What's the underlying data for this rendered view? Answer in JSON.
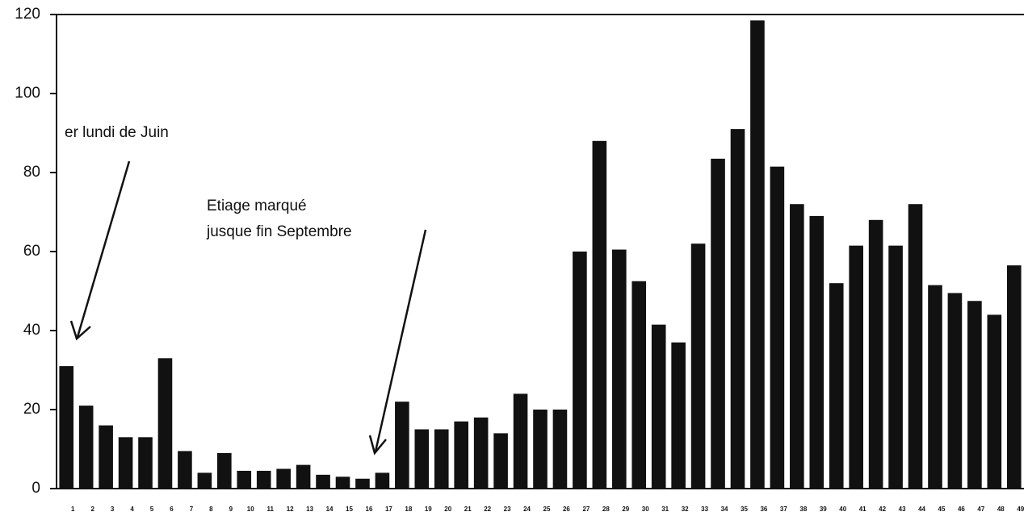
{
  "chart_data": {
    "type": "bar",
    "categories": [
      "1",
      "2",
      "3",
      "4",
      "5",
      "6",
      "7",
      "8",
      "9",
      "10",
      "11",
      "12",
      "13",
      "14",
      "15",
      "16",
      "17",
      "18",
      "19",
      "20",
      "21",
      "22",
      "23",
      "24",
      "25",
      "26",
      "27",
      "28",
      "29",
      "30",
      "31",
      "32",
      "33",
      "34",
      "35",
      "36",
      "37",
      "38",
      "39",
      "40",
      "41",
      "42",
      "43",
      "44",
      "45",
      "46",
      "47",
      "48",
      "49"
    ],
    "values": [
      31,
      21,
      16,
      13,
      13,
      33,
      9.5,
      4,
      9,
      4.5,
      4.5,
      5,
      6,
      3.5,
      3,
      2.5,
      4,
      22,
      15,
      15,
      17,
      18,
      14,
      24,
      20,
      20,
      60,
      88,
      60.5,
      52.5,
      41.5,
      37,
      62,
      83.5,
      91,
      118.5,
      81.5,
      72,
      69,
      52,
      61.5,
      68,
      61.5,
      72,
      51.5,
      49.5,
      47.5,
      44,
      56.5
    ],
    "color": "#111111",
    "ylim": [
      0,
      120
    ],
    "yticks": [
      0,
      20,
      40,
      60,
      80,
      100,
      120
    ],
    "annotations": [
      "er lundi de Juin",
      "Etiage marqué",
      "jusque fin Septembre"
    ]
  }
}
